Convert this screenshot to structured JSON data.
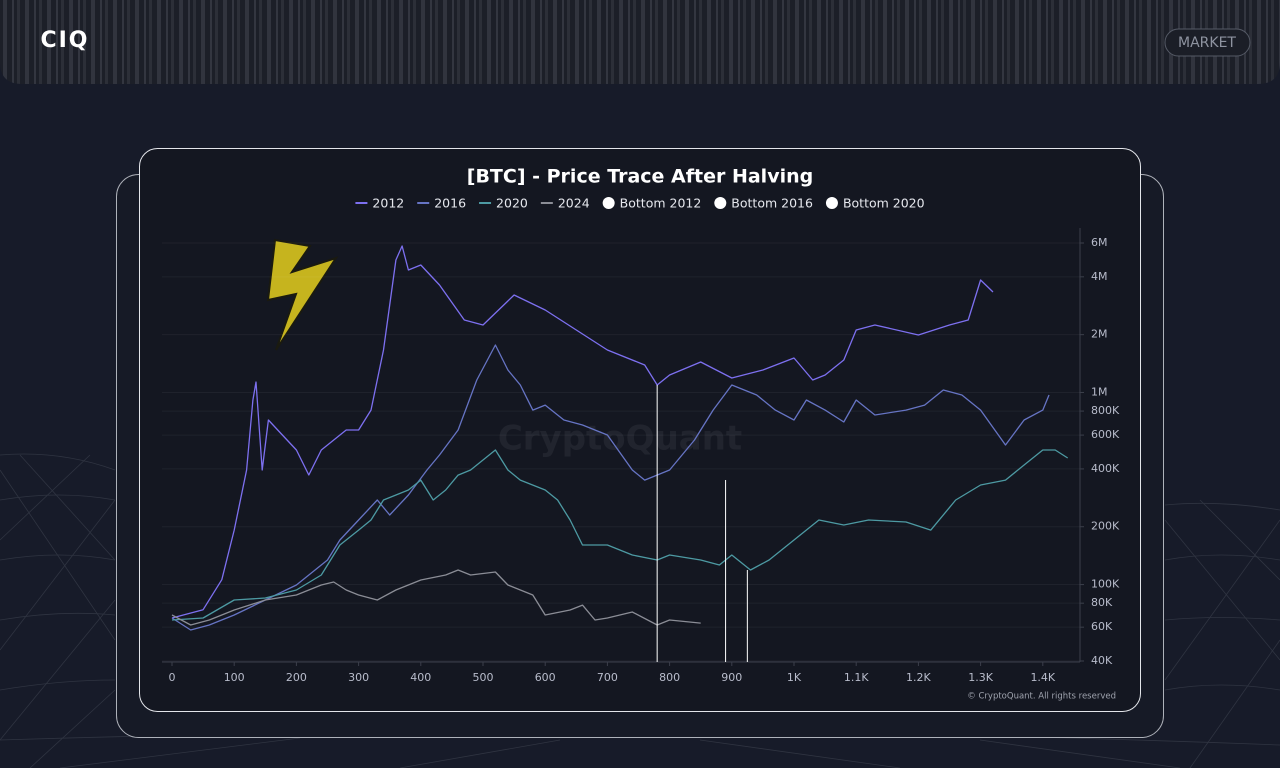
{
  "header": {
    "logo": "CIQ",
    "nav_button": "MARKET"
  },
  "chart_data": {
    "type": "line",
    "title": "[BTC] - Price Trace After Halving",
    "watermark": "CryptoQuant",
    "credit": "© CryptoQuant. All rights reserved",
    "log_y": true,
    "grid": true,
    "y_axis_side": "right",
    "xlim": [
      -16,
      1460
    ],
    "ylim": [
      40000,
      6000000
    ],
    "xticks": [
      0,
      100,
      200,
      300,
      400,
      500,
      600,
      700,
      800,
      900,
      {
        "value": 1000,
        "label": "1K"
      },
      {
        "value": 1100,
        "label": "1.1K"
      },
      {
        "value": 1200,
        "label": "1.2K"
      },
      {
        "value": 1300,
        "label": "1.3K"
      },
      {
        "value": 1400,
        "label": "1.4K"
      }
    ],
    "yticks": [
      {
        "value": 40000,
        "label": "40K"
      },
      {
        "value": 60000,
        "label": "60K"
      },
      {
        "value": 80000,
        "label": "80K"
      },
      {
        "value": 100000,
        "label": "100K"
      },
      {
        "value": 200000,
        "label": "200K"
      },
      {
        "value": 400000,
        "label": "400K"
      },
      {
        "value": 600000,
        "label": "600K"
      },
      {
        "value": 800000,
        "label": "800K"
      },
      {
        "value": 1000000,
        "label": "1M"
      },
      {
        "value": 2000000,
        "label": "2M"
      },
      {
        "value": 4000000,
        "label": "4M"
      },
      {
        "value": 6000000,
        "label": "6M"
      }
    ],
    "series": [
      {
        "name": "2012",
        "color": "#7d70f0",
        "mark": "line",
        "x": [
          0,
          50,
          80,
          100,
          120,
          130,
          135,
          145,
          155,
          170,
          200,
          220,
          240,
          280,
          300,
          320,
          340,
          360,
          370,
          380,
          400,
          430,
          470,
          500,
          550,
          600,
          650,
          700,
          760,
          780,
          800,
          850,
          900,
          950,
          1000,
          1030,
          1050,
          1080,
          1100,
          1130,
          1200,
          1250,
          1280,
          1300,
          1320
        ],
        "values": [
          67000,
          74000,
          106000,
          192000,
          395000,
          914000,
          1134000,
          395000,
          719000,
          638000,
          502000,
          372000,
          502000,
          638000,
          638000,
          810000,
          1663000,
          4893000,
          5787000,
          4340000,
          4609000,
          3627000,
          2384000,
          2245000,
          3217000,
          2687000,
          2115000,
          1663000,
          1390000,
          1094000,
          1233000,
          1441000,
          1189000,
          1309000,
          1511000,
          1161000,
          1233000,
          1476000,
          2115000,
          2245000,
          1992000,
          2245000,
          2384000,
          3850000,
          3334000
        ]
      },
      {
        "name": "2016",
        "color": "#6674c4",
        "mark": "line",
        "x": [
          0,
          30,
          60,
          100,
          150,
          200,
          250,
          270,
          300,
          330,
          350,
          380,
          410,
          430,
          460,
          490,
          520,
          540,
          560,
          580,
          600,
          630,
          660,
          700,
          740,
          760,
          800,
          840,
          870,
          900,
          940,
          970,
          1000,
          1020,
          1050,
          1080,
          1100,
          1130,
          1180,
          1210,
          1240,
          1270,
          1300,
          1340,
          1370,
          1400,
          1410
        ],
        "values": [
          67000,
          58000,
          61600,
          69400,
          83100,
          99500,
          134200,
          170600,
          216800,
          275600,
          230200,
          292600,
          395000,
          472500,
          638000,
          1161000,
          1766000,
          1309000,
          1094000,
          810000,
          860000,
          719000,
          677000,
          600500,
          395000,
          350000,
          395000,
          565600,
          810000,
          1094000,
          970000,
          810000,
          719000,
          914000,
          810000,
          702000,
          914000,
          763000,
          810000,
          860000,
          1030000,
          970000,
          810000,
          532700,
          719000,
          810000,
          970000
        ]
      },
      {
        "name": "2020",
        "color": "#4d9aa3",
        "mark": "line",
        "x": [
          0,
          50,
          100,
          150,
          200,
          240,
          270,
          300,
          320,
          340,
          380,
          400,
          420,
          440,
          460,
          480,
          500,
          520,
          540,
          560,
          600,
          620,
          640,
          660,
          700,
          740,
          780,
          800,
          850,
          880,
          900,
          930,
          960,
          1000,
          1040,
          1080,
          1120,
          1180,
          1220,
          1260,
          1300,
          1340,
          1370,
          1400,
          1420,
          1440
        ],
        "values": [
          65400,
          67000,
          83100,
          85100,
          93700,
          112100,
          160700,
          192000,
          216800,
          275600,
          310600,
          350000,
          275600,
          310600,
          371500,
          395000,
          445000,
          502000,
          395000,
          350000,
          310600,
          275600,
          216800,
          160700,
          160700,
          142500,
          134200,
          142500,
          134200,
          126400,
          142500,
          119100,
          134200,
          170600,
          216800,
          204200,
          216800,
          211700,
          192000,
          275600,
          330000,
          350000,
          419300,
          502000,
          502000,
          456000
        ]
      },
      {
        "name": "2024",
        "color": "#8b8d96",
        "mark": "line",
        "x": [
          0,
          30,
          60,
          100,
          150,
          200,
          240,
          260,
          280,
          300,
          330,
          360,
          400,
          440,
          460,
          480,
          520,
          540,
          580,
          600,
          640,
          660,
          680,
          700,
          740,
          780,
          800,
          850
        ],
        "values": [
          69400,
          61600,
          65400,
          73700,
          83100,
          88200,
          99500,
          103100,
          93700,
          88200,
          83100,
          93700,
          105600,
          112100,
          119100,
          112100,
          116200,
          99500,
          88200,
          69400,
          73700,
          78200,
          65400,
          67000,
          72000,
          61600,
          65400,
          63000
        ]
      },
      {
        "name": "Bottom 2012",
        "color": "#ffffff",
        "mark": "vline",
        "x": [
          780
        ],
        "values": [
          1094000
        ]
      },
      {
        "name": "Bottom 2016",
        "color": "#ffffff",
        "mark": "vline",
        "x": [
          890
        ],
        "values": [
          350000
        ]
      },
      {
        "name": "Bottom 2020",
        "color": "#ffffff",
        "mark": "vline",
        "x": [
          925
        ],
        "values": [
          119100
        ]
      }
    ]
  }
}
